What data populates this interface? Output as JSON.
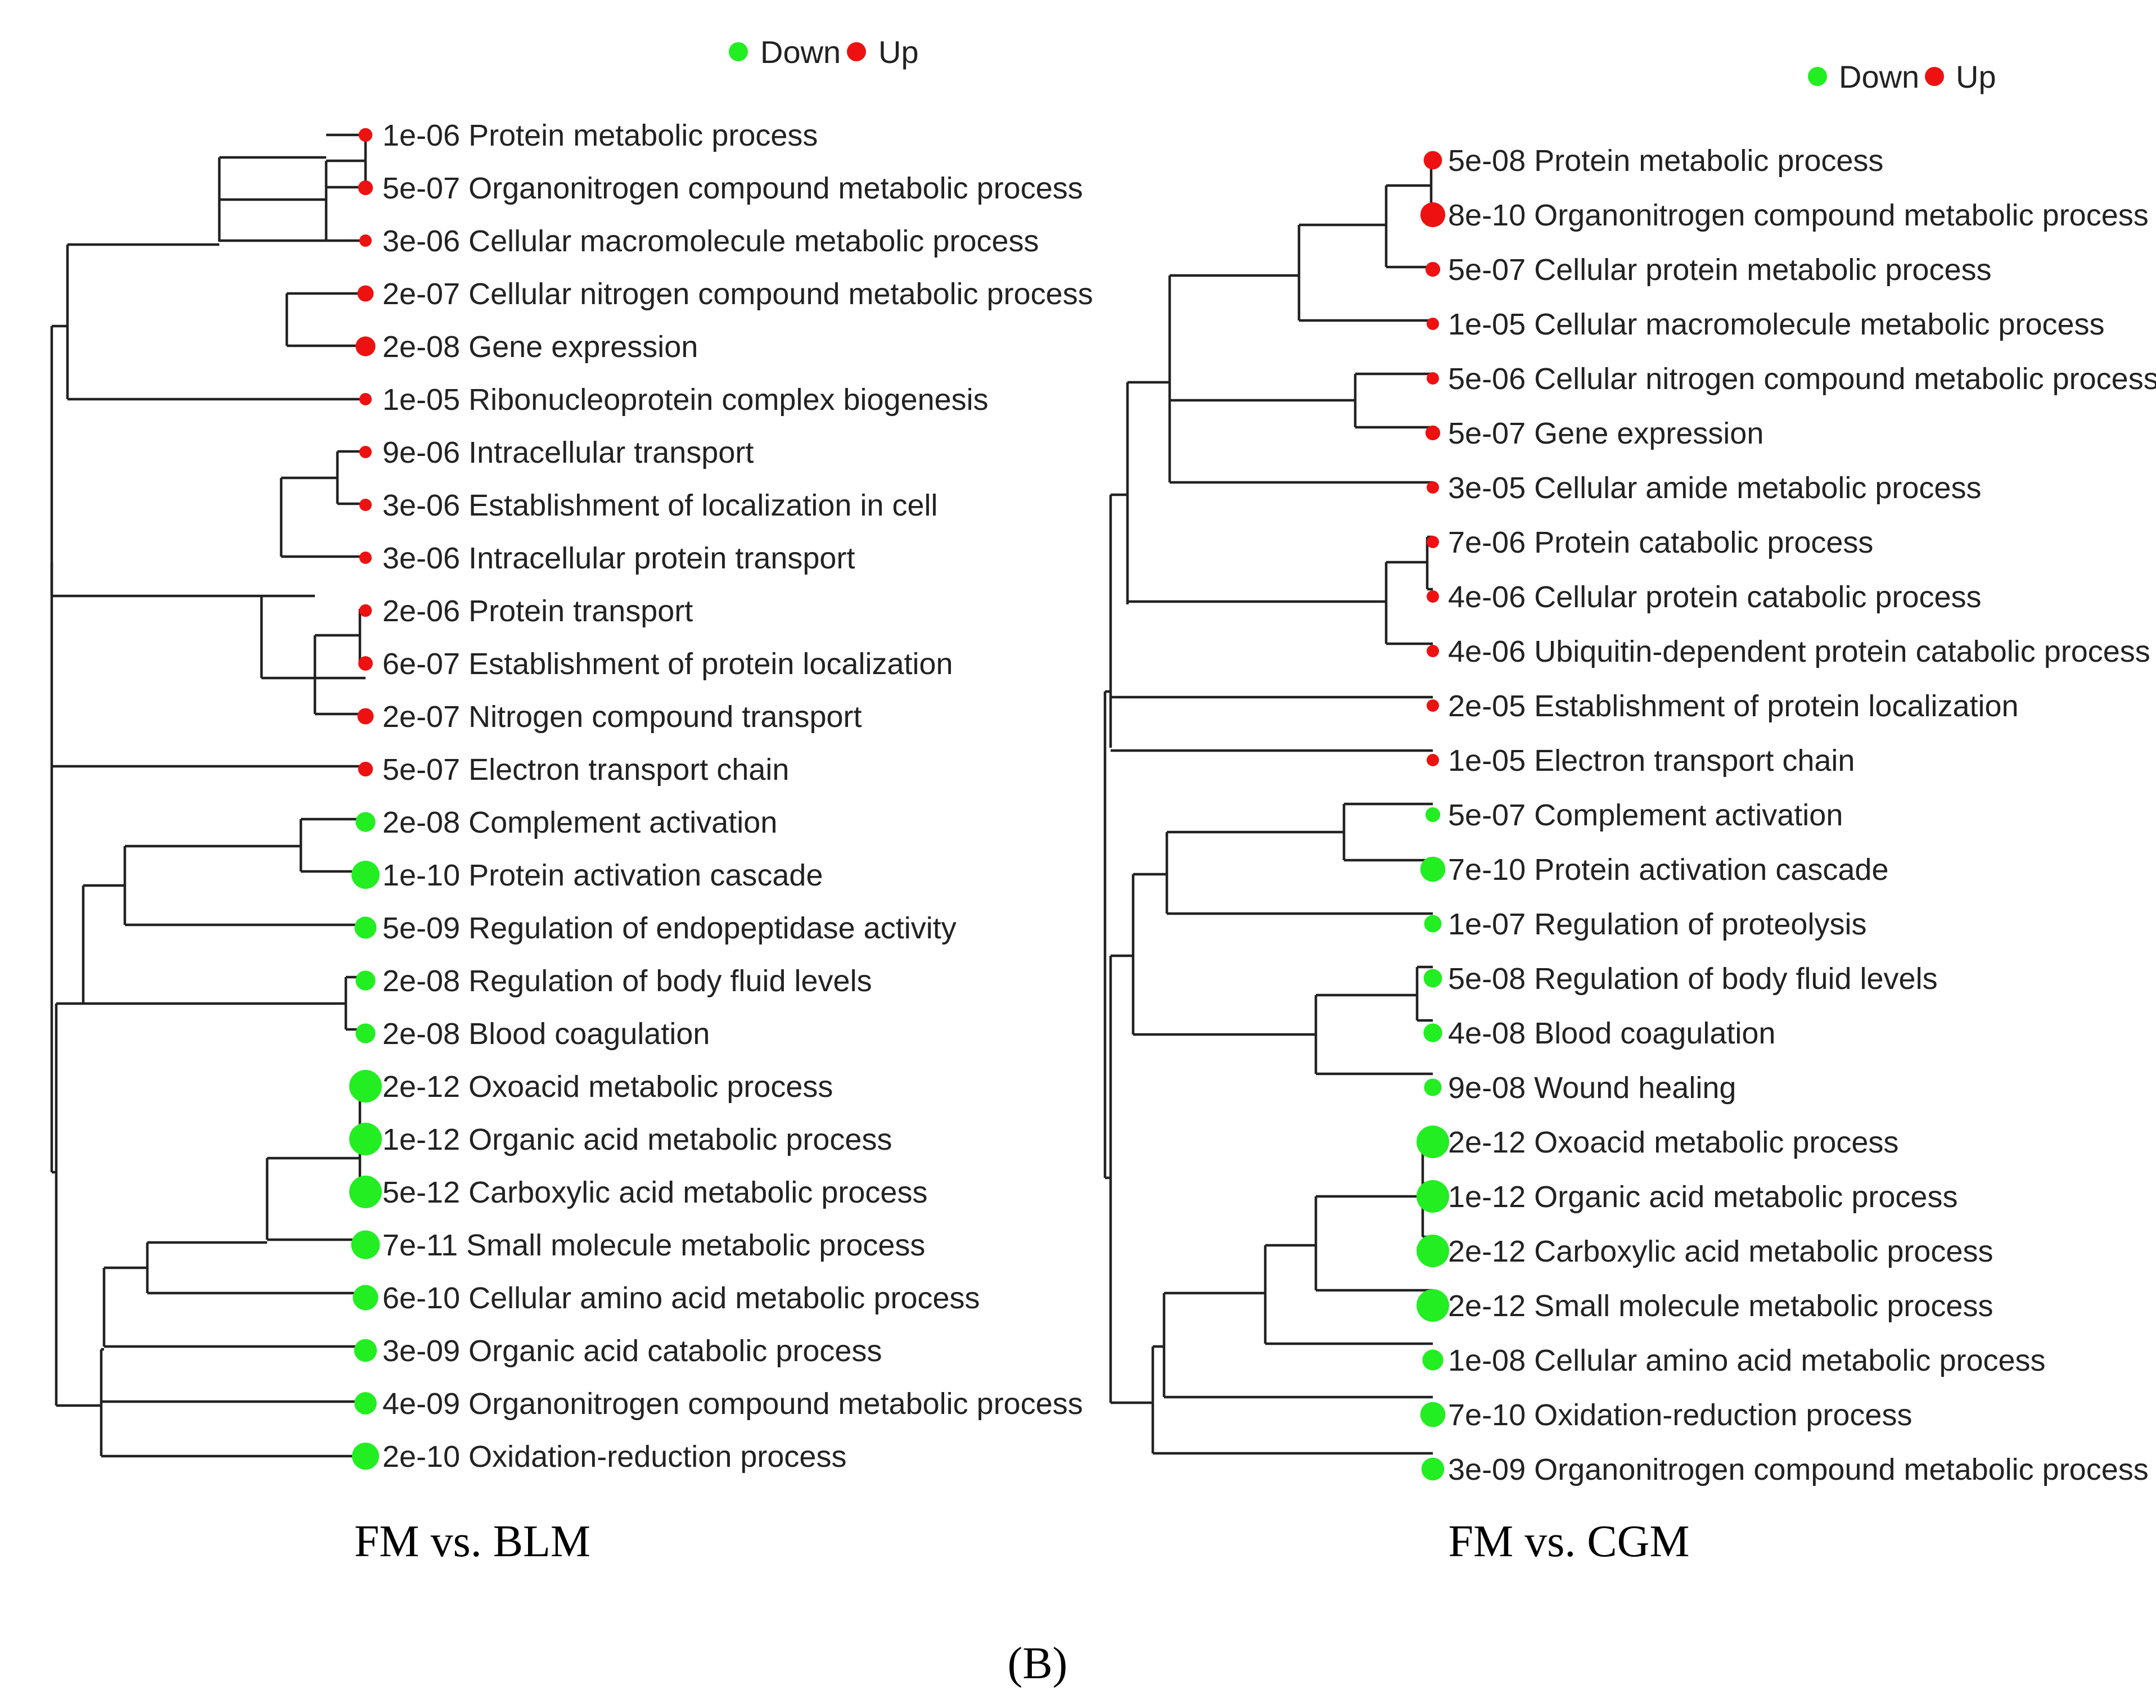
{
  "legend": {
    "down_label": "Down",
    "up_label": "Up",
    "down_color": "#22ee22",
    "up_color": "#ee1111"
  },
  "caption": "(B)",
  "panels": [
    {
      "title": "FM vs. BLM",
      "leaves": [
        {
          "pval": "1e-06",
          "term": "Protein metabolic process",
          "direction": "up"
        },
        {
          "pval": "5e-07",
          "term": "Organonitrogen compound metabolic process",
          "direction": "up"
        },
        {
          "pval": "3e-06",
          "term": "Cellular macromolecule metabolic process",
          "direction": "up"
        },
        {
          "pval": "2e-07",
          "term": "Cellular nitrogen compound metabolic process",
          "direction": "up"
        },
        {
          "pval": "2e-08",
          "term": "Gene expression",
          "direction": "up"
        },
        {
          "pval": "1e-05",
          "term": "Ribonucleoprotein complex biogenesis",
          "direction": "up"
        },
        {
          "pval": "9e-06",
          "term": "Intracellular transport",
          "direction": "up"
        },
        {
          "pval": "3e-06",
          "term": "Establishment of localization in cell",
          "direction": "up"
        },
        {
          "pval": "3e-06",
          "term": "Intracellular protein transport",
          "direction": "up"
        },
        {
          "pval": "2e-06",
          "term": "Protein transport",
          "direction": "up"
        },
        {
          "pval": "6e-07",
          "term": "Establishment of protein localization",
          "direction": "up"
        },
        {
          "pval": "2e-07",
          "term": "Nitrogen compound transport",
          "direction": "up"
        },
        {
          "pval": "5e-07",
          "term": "Electron transport chain",
          "direction": "up"
        },
        {
          "pval": "2e-08",
          "term": "Complement activation",
          "direction": "down"
        },
        {
          "pval": "1e-10",
          "term": "Protein activation cascade",
          "direction": "down"
        },
        {
          "pval": "5e-09",
          "term": "Regulation of endopeptidase activity",
          "direction": "down"
        },
        {
          "pval": "2e-08",
          "term": "Regulation of body fluid levels",
          "direction": "down"
        },
        {
          "pval": "2e-08",
          "term": "Blood coagulation",
          "direction": "down"
        },
        {
          "pval": "2e-12",
          "term": "Oxoacid metabolic process",
          "direction": "down"
        },
        {
          "pval": "1e-12",
          "term": "Organic acid metabolic process",
          "direction": "down"
        },
        {
          "pval": "5e-12",
          "term": "Carboxylic acid metabolic process",
          "direction": "down"
        },
        {
          "pval": "7e-11",
          "term": "Small molecule metabolic process",
          "direction": "down"
        },
        {
          "pval": "6e-10",
          "term": "Cellular amino acid metabolic process",
          "direction": "down"
        },
        {
          "pval": "3e-09",
          "term": "Organic acid catabolic process",
          "direction": "down"
        },
        {
          "pval": "4e-09",
          "term": "Organonitrogen compound metabolic process",
          "direction": "down"
        },
        {
          "pval": "2e-10",
          "term": "Oxidation-reduction process",
          "direction": "down"
        }
      ]
    },
    {
      "title": "FM vs. CGM",
      "leaves": [
        {
          "pval": "5e-08",
          "term": "Protein metabolic process",
          "direction": "up"
        },
        {
          "pval": "8e-10",
          "term": "Organonitrogen compound metabolic process",
          "direction": "up"
        },
        {
          "pval": "5e-07",
          "term": "Cellular protein metabolic process",
          "direction": "up"
        },
        {
          "pval": "1e-05",
          "term": "Cellular macromolecule metabolic process",
          "direction": "up"
        },
        {
          "pval": "5e-06",
          "term": "Cellular nitrogen compound metabolic process",
          "direction": "up"
        },
        {
          "pval": "5e-07",
          "term": "Gene expression",
          "direction": "up"
        },
        {
          "pval": "3e-05",
          "term": "Cellular amide metabolic process",
          "direction": "up"
        },
        {
          "pval": "7e-06",
          "term": "Protein catabolic process",
          "direction": "up"
        },
        {
          "pval": "4e-06",
          "term": "Cellular protein catabolic process",
          "direction": "up"
        },
        {
          "pval": "4e-06",
          "term": "Ubiquitin-dependent protein catabolic process",
          "direction": "up"
        },
        {
          "pval": "2e-05",
          "term": "Establishment of protein localization",
          "direction": "up"
        },
        {
          "pval": "1e-05",
          "term": "Electron transport chain",
          "direction": "up"
        },
        {
          "pval": "5e-07",
          "term": "Complement activation",
          "direction": "down"
        },
        {
          "pval": "7e-10",
          "term": "Protein activation cascade",
          "direction": "down"
        },
        {
          "pval": "1e-07",
          "term": "Regulation of proteolysis",
          "direction": "down"
        },
        {
          "pval": "5e-08",
          "term": "Regulation of body fluid levels",
          "direction": "down"
        },
        {
          "pval": "4e-08",
          "term": "Blood coagulation",
          "direction": "down"
        },
        {
          "pval": "9e-08",
          "term": "Wound healing",
          "direction": "down"
        },
        {
          "pval": "2e-12",
          "term": "Oxoacid metabolic process",
          "direction": "down"
        },
        {
          "pval": "1e-12",
          "term": "Organic acid metabolic process",
          "direction": "down"
        },
        {
          "pval": "2e-12",
          "term": "Carboxylic acid metabolic process",
          "direction": "down"
        },
        {
          "pval": "2e-12",
          "term": "Small molecule metabolic process",
          "direction": "down"
        },
        {
          "pval": "1e-08",
          "term": "Cellular amino acid metabolic process",
          "direction": "down"
        },
        {
          "pval": "7e-10",
          "term": "Oxidation-reduction process",
          "direction": "down"
        },
        {
          "pval": "3e-09",
          "term": "Organonitrogen compound metabolic process",
          "direction": "down"
        }
      ]
    }
  ]
}
